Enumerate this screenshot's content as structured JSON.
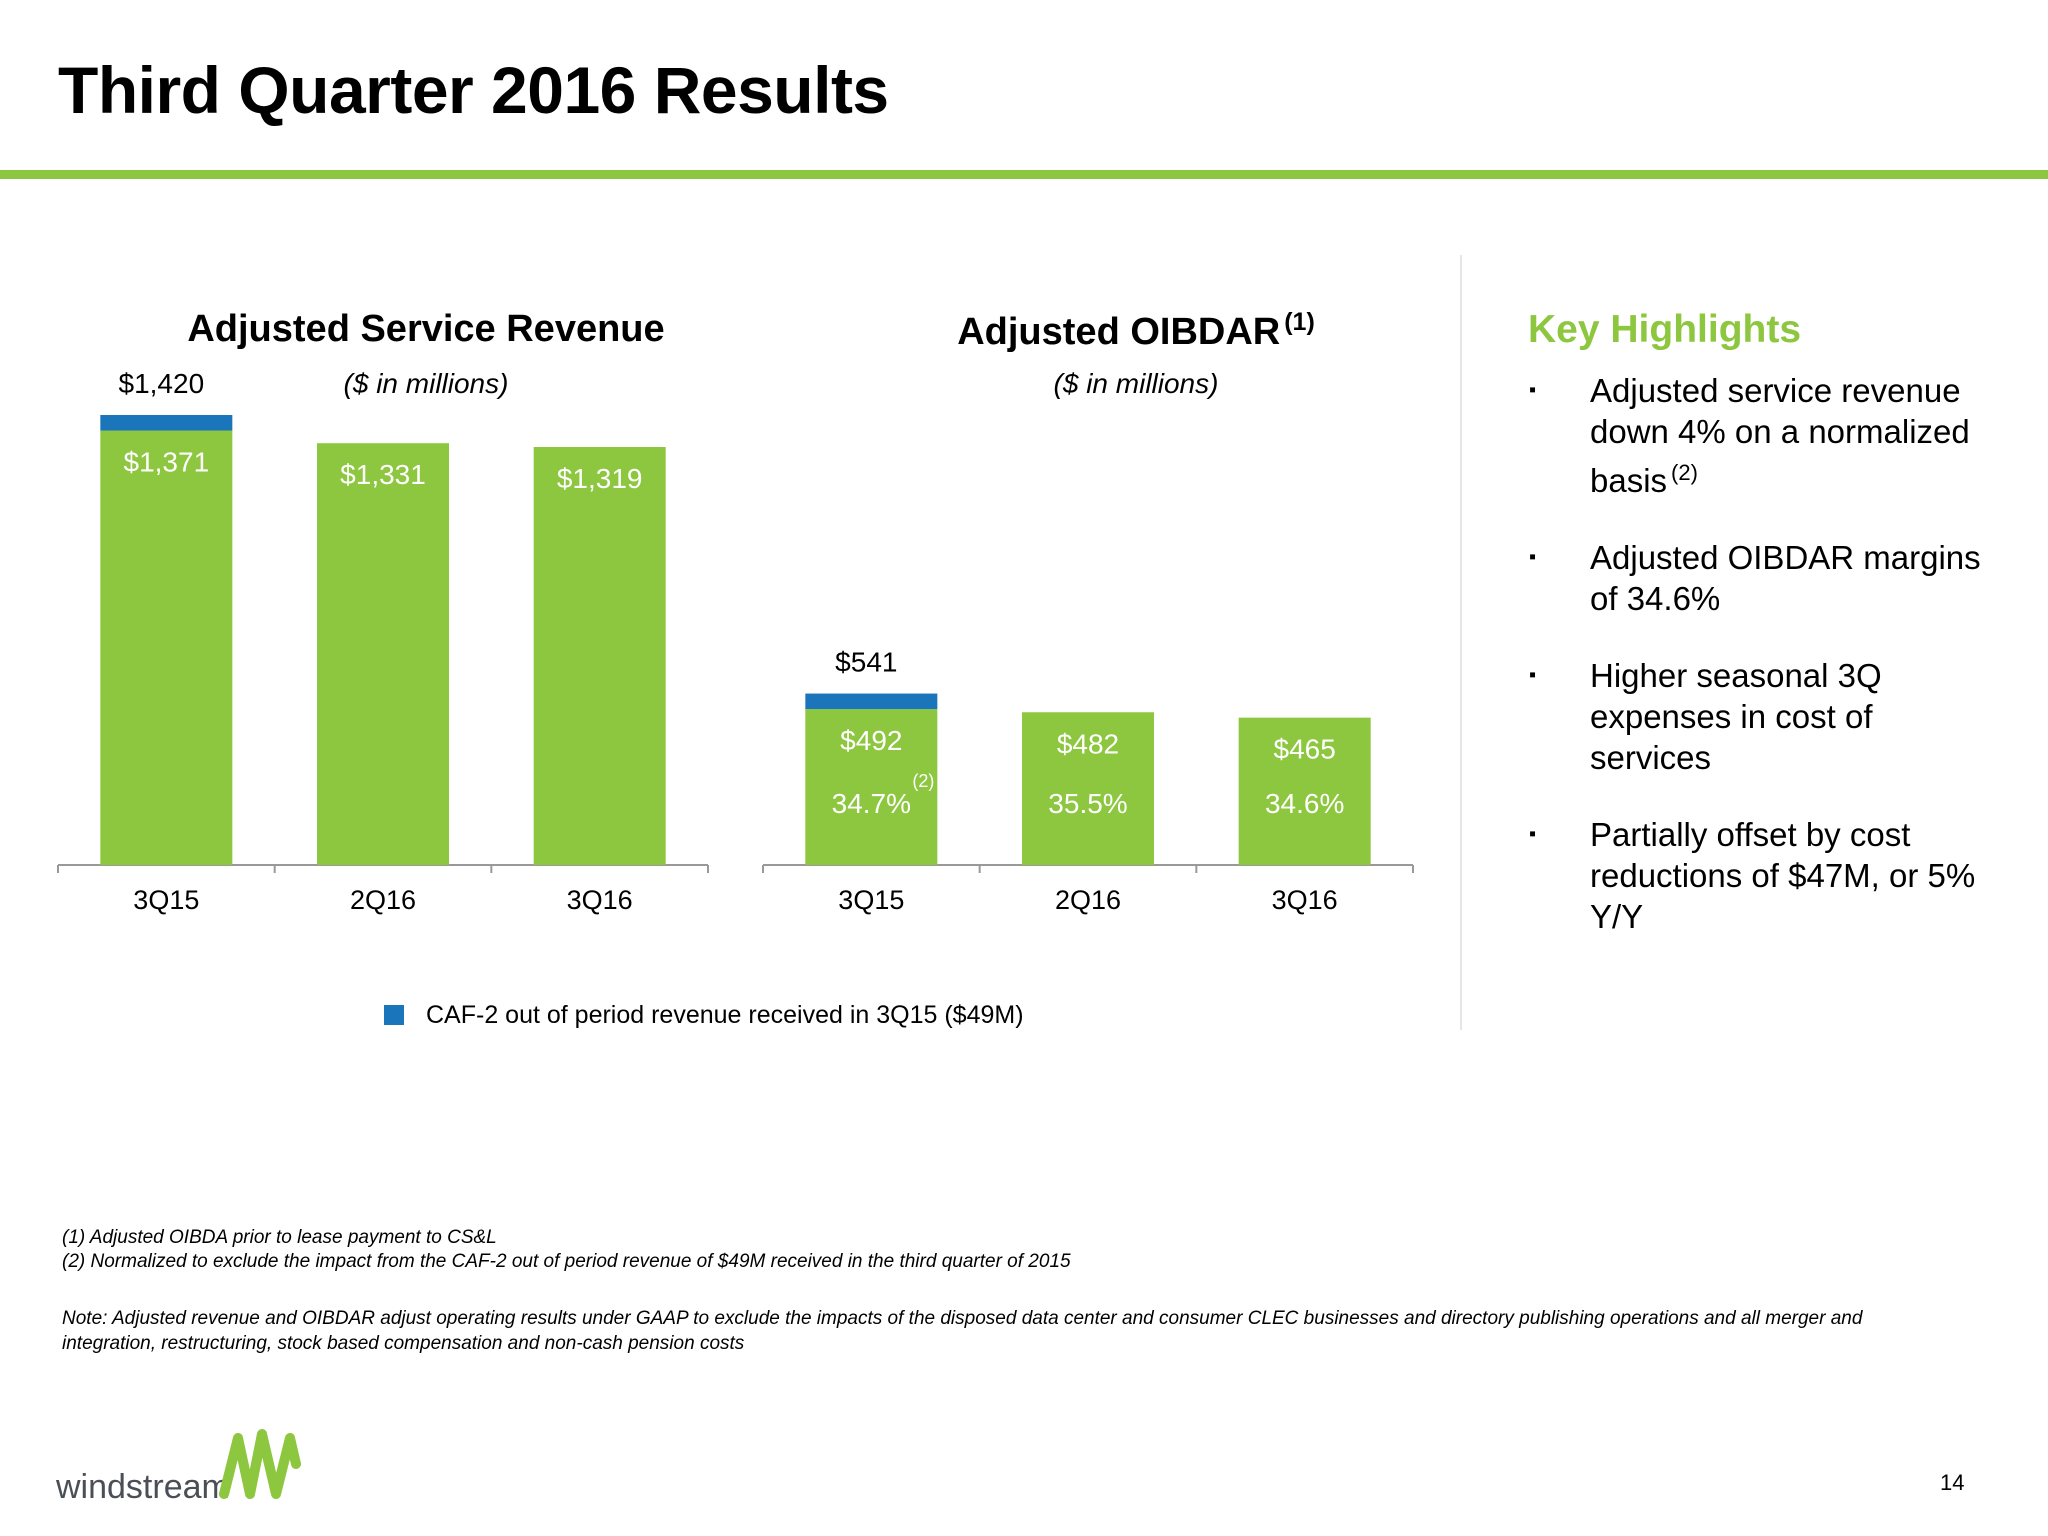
{
  "header": {
    "title": "Third Quarter 2016 Results"
  },
  "colors": {
    "accent_green": "#8dc63f",
    "bar_green": "#8dc63f",
    "bar_blue": "#1b75bb",
    "highlight_title": "#8dc63f",
    "axis": "#999999"
  },
  "chart_data": [
    {
      "type": "bar",
      "stacked": true,
      "title": "Adjusted Service Revenue",
      "subtitle": "($ in millions)",
      "categories": [
        "3Q15",
        "2Q16",
        "3Q16"
      ],
      "series": [
        {
          "name": "",
          "values": [
            1371,
            1331,
            1319
          ],
          "labels": [
            "$1,371",
            "$1,331",
            "$1,319"
          ]
        },
        {
          "name": "CAF-2 out of period revenue received in 3Q15 ($49M)",
          "values": [
            49,
            0,
            0
          ]
        }
      ],
      "totals": [
        1420,
        null,
        null
      ],
      "total_labels": [
        "$1,420",
        "",
        ""
      ],
      "ylim": [
        0,
        1420
      ]
    },
    {
      "type": "bar",
      "stacked": true,
      "title": "Adjusted OIBDAR",
      "title_note": "(1)",
      "subtitle": "($ in millions)",
      "categories": [
        "3Q15",
        "2Q16",
        "3Q16"
      ],
      "series": [
        {
          "name": "",
          "values": [
            492,
            482,
            465
          ],
          "labels": [
            "$492",
            "$482",
            "$465"
          ]
        },
        {
          "name": "CAF-2 out of period revenue received in 3Q15 ($49M)",
          "values": [
            49,
            0,
            0
          ]
        }
      ],
      "totals": [
        541,
        null,
        null
      ],
      "total_labels": [
        "$541",
        "",
        ""
      ],
      "margins": [
        "34.7%",
        "35.5%",
        "34.6%"
      ],
      "margin_notes": [
        "(2)",
        "",
        ""
      ],
      "ylim": [
        0,
        1420
      ]
    }
  ],
  "legend": {
    "label": "CAF-2 out of period revenue received in 3Q15 ($49M)",
    "swatch_color": "#1b75bb"
  },
  "highlights": {
    "title": "Key Highlights",
    "bullet": "▪",
    "items": [
      {
        "text": "Adjusted service revenue down 4% on a normalized basis",
        "note": "(2)"
      },
      {
        "text": "Adjusted OIBDAR margins of 34.6%",
        "note": ""
      },
      {
        "text": "Higher seasonal 3Q expenses in cost of services",
        "note": ""
      },
      {
        "text": "Partially offset by cost reductions of $47M, or 5% Y/Y",
        "note": ""
      }
    ]
  },
  "footnotes": [
    "(1) Adjusted OIBDA prior to lease payment to CS&L",
    "(2) Normalized to exclude the impact from the CAF-2 out of period revenue of $49M received in the third quarter of 2015"
  ],
  "note": "Note:  Adjusted revenue and OIBDAR adjust operating results under GAAP to exclude the impacts of the disposed data center and consumer CLEC businesses and directory publishing operations and all merger and integration, restructuring, stock based compensation and non-cash pension costs",
  "logo": {
    "text": "windstream",
    "mark": "."
  },
  "page_number": "14"
}
